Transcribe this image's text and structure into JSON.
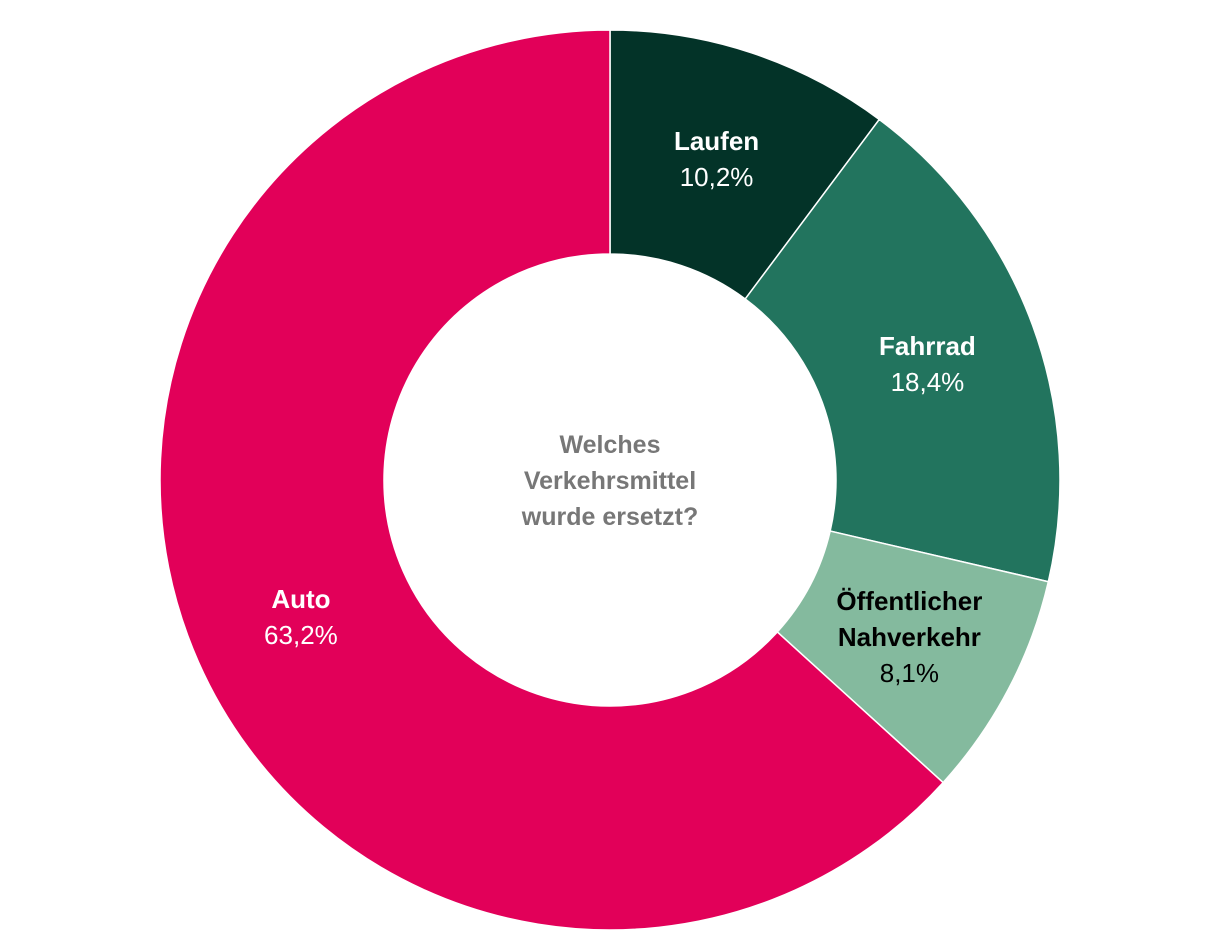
{
  "chart_data": {
    "type": "pie",
    "donut": true,
    "title": "Welches Verkehrsmittel wurde ersetzt?",
    "title_lines": [
      "Welches",
      "Verkehrsmittel",
      "wurde ersetzt?"
    ],
    "slices": [
      {
        "label": "Laufen",
        "label_lines": [
          "Laufen"
        ],
        "value": 10.2,
        "value_label": "10,2%",
        "color": "#033328",
        "text_color": "#ffffff"
      },
      {
        "label": "Fahrrad",
        "label_lines": [
          "Fahrrad"
        ],
        "value": 18.4,
        "value_label": "18,4%",
        "color": "#22745E",
        "text_color": "#ffffff"
      },
      {
        "label": "Öffentlicher Nahverkehr",
        "label_lines": [
          "Öffentlicher",
          "Nahverkehr"
        ],
        "value": 8.1,
        "value_label": "8,1%",
        "color": "#84BA9E",
        "text_color": "#000000"
      },
      {
        "label": "Auto",
        "label_lines": [
          "Auto"
        ],
        "value": 63.2,
        "value_label": "63,2%",
        "color": "#E20059",
        "text_color": "#ffffff"
      }
    ]
  }
}
